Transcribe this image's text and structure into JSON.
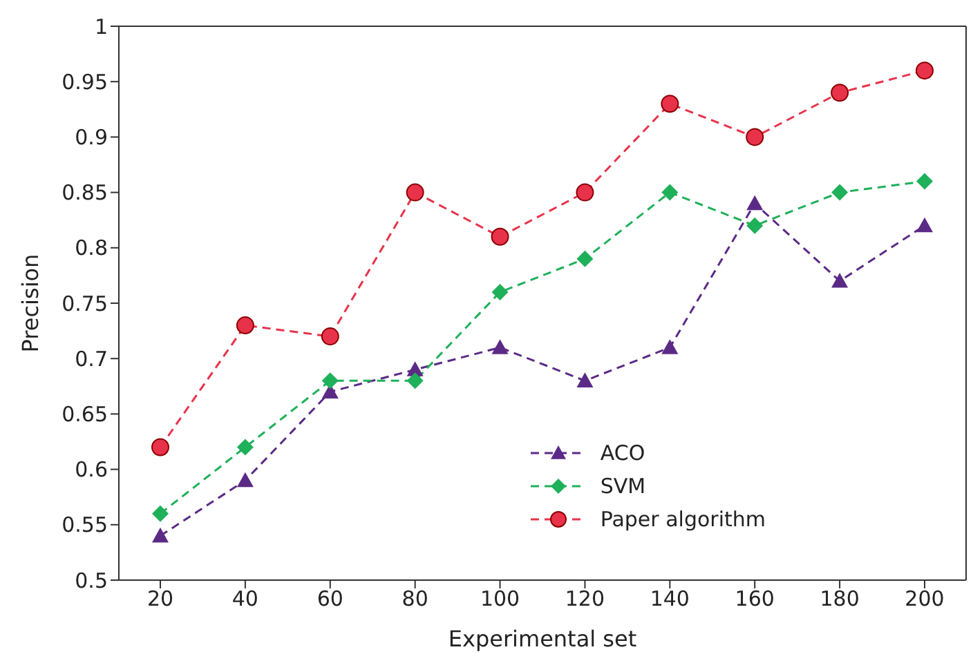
{
  "chart_data": {
    "type": "line",
    "xlabel": "Experimental set",
    "ylabel": "Precision",
    "categories": [
      "20",
      "40",
      "60",
      "80",
      "100",
      "120",
      "140",
      "160",
      "180",
      "200"
    ],
    "series": [
      {
        "name": "ACO",
        "color": "#5b2a86",
        "marker": "triangle",
        "values": [
          0.54,
          0.59,
          0.67,
          0.69,
          0.71,
          0.68,
          0.71,
          0.84,
          0.77,
          0.82
        ]
      },
      {
        "name": "SVM",
        "color": "#1fb05a",
        "marker": "diamond",
        "values": [
          0.56,
          0.62,
          0.68,
          0.68,
          0.76,
          0.79,
          0.85,
          0.82,
          0.85,
          0.86
        ]
      },
      {
        "name": "Paper algorithm",
        "color": "#e8324a",
        "marker": "circle",
        "values": [
          0.62,
          0.73,
          0.72,
          0.85,
          0.81,
          0.85,
          0.93,
          0.9,
          0.94,
          0.96
        ]
      }
    ],
    "ylim": [
      0.5,
      1
    ],
    "yticks": [
      0.5,
      0.55,
      0.6,
      0.65,
      0.7,
      0.75,
      0.8,
      0.85,
      0.9,
      0.95,
      1
    ],
    "line_style": "dashed",
    "grid": false,
    "legend": "bottom right"
  }
}
